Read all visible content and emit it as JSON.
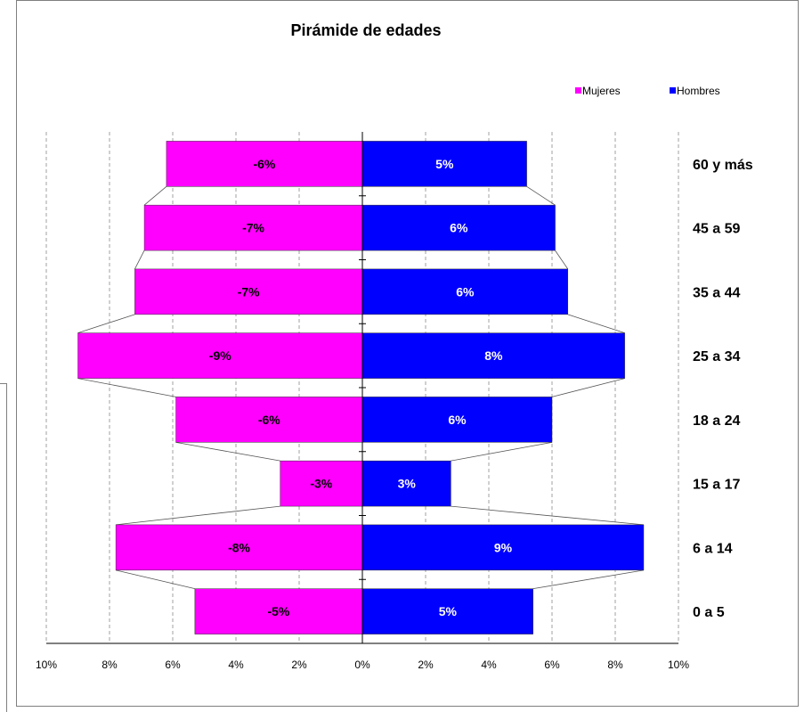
{
  "chart_data": {
    "type": "bar",
    "orientation": "horizontal",
    "title": "Pirámide de edades",
    "categories": [
      "60 y más",
      "45 a 59",
      "35 a 44",
      "25 a 34",
      "18 a 24",
      "15 a 17",
      "6 a 14",
      "0 a 5"
    ],
    "series": [
      {
        "name": "Mujeres",
        "color": "#ff00ff",
        "values": [
          -6.2,
          -6.9,
          -7.2,
          -9.0,
          -5.9,
          -2.6,
          -7.8,
          -5.3
        ],
        "labels": [
          "-6%",
          "-7%",
          "-7%",
          "-9%",
          "-6%",
          "-3%",
          "-8%",
          "-5%"
        ]
      },
      {
        "name": "Hombres",
        "color": "#0000ff",
        "values": [
          5.2,
          6.1,
          6.5,
          8.3,
          6.0,
          2.8,
          8.9,
          5.4
        ],
        "labels": [
          "5%",
          "6%",
          "6%",
          "8%",
          "6%",
          "3%",
          "9%",
          "5%"
        ]
      }
    ],
    "xlim": [
      -10,
      10
    ],
    "xticks": [
      "10%",
      "8%",
      "6%",
      "4%",
      "2%",
      "0%",
      "2%",
      "4%",
      "6%",
      "8%",
      "10%"
    ],
    "grid": "vertical dashed",
    "legend": "top-right"
  }
}
